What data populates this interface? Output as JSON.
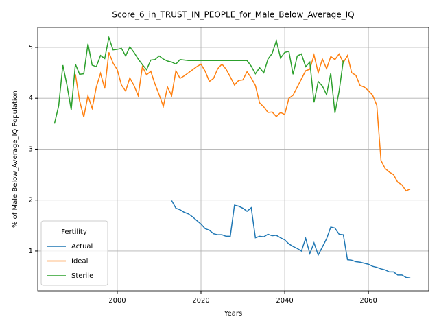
{
  "chart_data": {
    "type": "line",
    "title": "Score_6_in_TRUST_IN_PEOPLE_for_Male_Below_Average_IQ",
    "xlabel": "Years",
    "ylabel": "% of Male Below_Average_IQ Population",
    "legend_title": "Fertility",
    "legend": "lower left",
    "grid": true,
    "x": [
      1985,
      1986,
      1987,
      1988,
      1989,
      1990,
      1991,
      1992,
      1993,
      1994,
      1995,
      1996,
      1997,
      1998,
      1999,
      2000,
      2001,
      2002,
      2003,
      2004,
      2005,
      2006,
      2007,
      2008,
      2009,
      2010,
      2011,
      2012,
      2013,
      2014,
      2015,
      2016,
      2017,
      2018,
      2019,
      2020,
      2021,
      2022,
      2023,
      2024,
      2025,
      2026,
      2027,
      2028,
      2029,
      2030,
      2031,
      2032,
      2033,
      2034,
      2035,
      2036,
      2037,
      2038,
      2039,
      2040,
      2041,
      2042,
      2043,
      2044,
      2045,
      2046,
      2047,
      2048,
      2049,
      2050,
      2051,
      2052,
      2053,
      2054,
      2055,
      2056,
      2057,
      2058,
      2059,
      2060,
      2061,
      2062,
      2063,
      2064,
      2065,
      2066,
      2067,
      2068,
      2069,
      2070
    ],
    "series": [
      {
        "name": "Actual",
        "color": "#1f77b4",
        "values": [
          null,
          null,
          null,
          null,
          null,
          null,
          null,
          null,
          null,
          null,
          null,
          null,
          null,
          null,
          null,
          null,
          null,
          null,
          null,
          null,
          null,
          null,
          null,
          null,
          null,
          null,
          null,
          null,
          1.99,
          1.84,
          1.81,
          1.76,
          1.73,
          1.67,
          1.6,
          1.53,
          1.44,
          1.41,
          1.34,
          1.32,
          1.32,
          1.29,
          1.29,
          1.9,
          1.88,
          1.84,
          1.78,
          1.85,
          1.26,
          1.29,
          1.28,
          1.33,
          1.3,
          1.31,
          1.26,
          1.22,
          1.14,
          1.09,
          1.05,
          1.0,
          1.25,
          0.95,
          1.16,
          0.92,
          1.08,
          1.24,
          1.47,
          1.45,
          1.33,
          1.32,
          0.83,
          0.82,
          0.79,
          0.78,
          0.76,
          0.74,
          0.7,
          0.68,
          0.65,
          0.63,
          0.59,
          0.59,
          0.53,
          0.53,
          0.48,
          0.47
        ]
      },
      {
        "name": "Ideal",
        "color": "#ff7f0e",
        "values": [
          null,
          null,
          null,
          null,
          null,
          4.47,
          3.95,
          3.63,
          4.05,
          3.8,
          4.22,
          4.49,
          4.19,
          4.9,
          4.69,
          4.56,
          4.26,
          4.14,
          4.4,
          4.25,
          4.05,
          4.62,
          4.46,
          4.53,
          4.28,
          4.07,
          3.84,
          4.22,
          4.05,
          4.54,
          4.39,
          4.44,
          4.5,
          4.56,
          4.62,
          4.67,
          4.53,
          4.33,
          4.39,
          4.58,
          4.67,
          4.57,
          4.42,
          4.26,
          4.35,
          4.36,
          4.52,
          4.4,
          4.25,
          3.91,
          3.83,
          3.72,
          3.73,
          3.64,
          3.72,
          3.68,
          4.0,
          4.06,
          4.22,
          4.38,
          4.54,
          4.57,
          4.85,
          4.5,
          4.77,
          4.58,
          4.82,
          4.76,
          4.87,
          4.7,
          4.84,
          4.5,
          4.45,
          4.25,
          4.22,
          4.15,
          4.06,
          3.86,
          2.78,
          2.62,
          2.55,
          2.5,
          2.35,
          2.3,
          2.18,
          2.22
        ]
      },
      {
        "name": "Sterile",
        "color": "#2ca02c",
        "values": [
          3.5,
          3.85,
          4.65,
          4.25,
          3.77,
          4.67,
          4.47,
          4.48,
          5.07,
          4.65,
          4.62,
          4.84,
          4.78,
          5.19,
          4.95,
          4.96,
          4.98,
          4.83,
          5.01,
          4.9,
          4.77,
          4.66,
          4.56,
          4.75,
          4.76,
          4.83,
          4.77,
          4.73,
          4.71,
          4.67,
          4.76,
          4.75,
          4.74,
          4.74,
          4.74,
          4.74,
          4.74,
          4.74,
          4.74,
          4.74,
          4.74,
          4.74,
          4.74,
          4.74,
          4.74,
          4.74,
          4.74,
          4.63,
          4.48,
          4.6,
          4.5,
          4.77,
          4.88,
          5.13,
          4.79,
          4.9,
          4.92,
          4.47,
          4.83,
          4.87,
          4.62,
          4.71,
          3.92,
          4.33,
          4.24,
          4.07,
          4.49,
          3.71,
          4.14,
          4.74,
          null,
          null,
          null,
          null,
          null,
          null,
          null,
          null,
          null,
          null,
          null,
          null,
          null,
          null,
          null,
          null
        ]
      }
    ],
    "xlim": [
      1981,
      2074.4
    ],
    "xticks": [
      2000,
      2020,
      2040,
      2060
    ],
    "ylim": [
      0.218,
      5.39
    ],
    "yticks": [
      1,
      2,
      3,
      4,
      5
    ]
  }
}
